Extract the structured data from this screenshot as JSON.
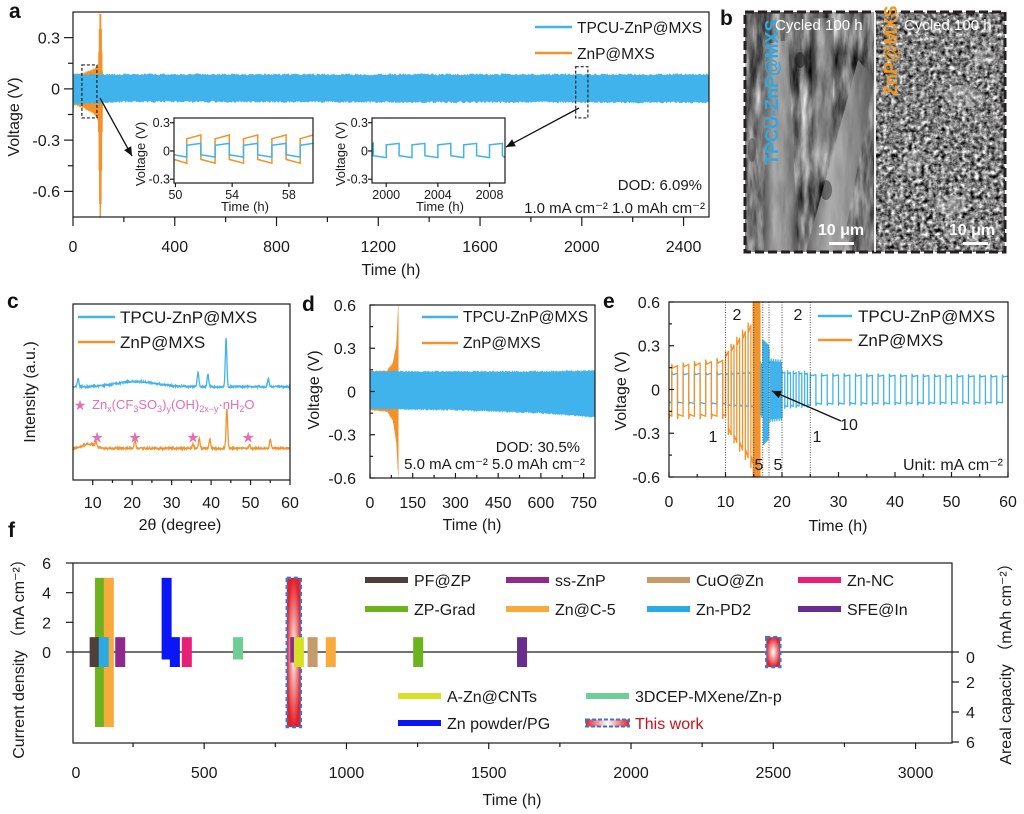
{
  "panel_labels": {
    "a": "a",
    "b": "b",
    "c": "c",
    "d": "d",
    "e": "e",
    "f": "f"
  },
  "series_colors": {
    "TPCU-ZnP@MXS": "#41b3ec",
    "ZnP@MXS": "#f2922a"
  },
  "panel_b": {
    "images": [
      {
        "sample": "TPCU-ZnP@MXS",
        "caption": "Cycled 100 h",
        "scale_bar": "10 μm",
        "label_color": "#2fa8e1"
      },
      {
        "sample": "ZnP@MXS",
        "caption": "Cycled 100 h",
        "scale_bar": "10 μm",
        "label_color": "#f39a1e"
      }
    ]
  },
  "chart_data": [
    {
      "panel": "a",
      "type": "line",
      "xlabel": "Time (h)",
      "ylabel": "Voltage (V)",
      "xlim": [
        0,
        2500
      ],
      "ylim": [
        -0.75,
        0.45
      ],
      "xticks": [
        0,
        400,
        800,
        1200,
        1600,
        2000,
        2400
      ],
      "yticks": [
        0.3,
        0,
        -0.3,
        -0.6
      ],
      "grid": false,
      "legend": {
        "position": "top-right",
        "entries": [
          "TPCU-ZnP@MXS",
          "ZnP@MXS"
        ]
      },
      "series": [
        {
          "name": "ZnP@MXS",
          "t_range": [
            0,
            100
          ],
          "envelope": [
            [
              0,
              0.085,
              -0.09
            ],
            [
              40,
              0.09,
              -0.11
            ],
            [
              85,
              0.12,
              -0.15
            ],
            [
              100,
              0.14,
              -0.19
            ]
          ],
          "failure": {
            "t_range": [
              100,
              115
            ],
            "max": 0.45,
            "min": -0.75
          }
        },
        {
          "name": "TPCU-ZnP@MXS",
          "t_range": [
            0,
            2500
          ],
          "envelope": [
            [
              0,
              0.09,
              -0.17
            ],
            [
              4,
              0.085,
              -0.09
            ],
            [
              200,
              0.085,
              -0.075
            ],
            [
              2500,
              0.085,
              -0.08
            ]
          ]
        }
      ],
      "annotations": {
        "dod": "DOD: 6.09%",
        "conditions": "1.0 mA cm⁻² 1.0 mAh cm⁻²"
      },
      "zoom_regions": [
        {
          "t": [
            35,
            94
          ],
          "v": [
            -0.17,
            0.14
          ]
        },
        {
          "t": [
            1976,
            2024
          ],
          "v": [
            -0.17,
            0.13
          ]
        }
      ],
      "insets": [
        {
          "xlabel": "Time (h)",
          "ylabel": "Voltage (V)",
          "xlim": [
            49.9,
            59.7
          ],
          "ylim": [
            -0.34,
            0.35
          ],
          "xticks": [
            50,
            54,
            58
          ],
          "yticks": [
            0.3,
            0,
            -0.3
          ],
          "period_h": 2,
          "first_rise_h": 50.8,
          "series": [
            {
              "name": "ZnP@MXS",
              "high": [
                0.13,
                0.17
              ],
              "low": [
                -0.09,
                -0.13
              ]
            },
            {
              "name": "TPCU-ZnP@MXS",
              "high": [
                0.06,
                0.08
              ],
              "low": [
                -0.04,
                -0.065
              ]
            }
          ]
        },
        {
          "xlabel": "Time (h)",
          "ylabel": "Voltage (V)",
          "xlim": [
            1998.9,
            2009.2
          ],
          "ylim": [
            -0.34,
            0.35
          ],
          "xticks": [
            2000,
            2004,
            2008
          ],
          "yticks": [
            0.3,
            0,
            -0.3
          ],
          "period_h": 2,
          "first_rise_h": 2000,
          "series": [
            {
              "name": "TPCU-ZnP@MXS",
              "high": [
                0.065,
                0.08
              ],
              "low": [
                -0.05,
                -0.07
              ]
            }
          ]
        }
      ]
    },
    {
      "panel": "c",
      "type": "line",
      "xlabel": "2θ (degree)",
      "ylabel": "Intensity (a.u.)",
      "xlim": [
        5,
        60
      ],
      "ylim": [
        0,
        10
      ],
      "xticks": [
        10,
        20,
        30,
        40,
        50,
        60
      ],
      "yticks": [],
      "grid": false,
      "legend": {
        "position": "top-left",
        "entries": [
          "TPCU-ZnP@MXS",
          "ZnP@MXS"
        ]
      },
      "series": [
        {
          "name": "TPCU-ZnP@MXS",
          "baseline": 5.3,
          "hump": {
            "center": 21,
            "height": 0.3,
            "width": 5
          },
          "peaks": [
            [
              6.3,
              0.45
            ],
            [
              36.7,
              0.85
            ],
            [
              39.2,
              0.7
            ],
            [
              43.8,
              2.75
            ],
            [
              54.5,
              0.45
            ]
          ]
        },
        {
          "name": "ZnP@MXS",
          "baseline": 1.8,
          "hump": {
            "center": 9,
            "height": 0.25,
            "width": 1.5
          },
          "peaks": [
            [
              10.8,
              0.25
            ],
            [
              20.7,
              0.45
            ],
            [
              35.4,
              0.25
            ],
            [
              37,
              0.55
            ],
            [
              39.7,
              0.5
            ],
            [
              44,
              2.25
            ],
            [
              49.7,
              0.2
            ],
            [
              55,
              0.5
            ]
          ]
        }
      ],
      "markers": {
        "symbol": "★",
        "color": "#e46fb3",
        "x": [
          11.1,
          20.7,
          35.4,
          49.4
        ],
        "label_parts": [
          {
            "t": "Zn"
          },
          {
            "t": "x",
            "sub": true
          },
          {
            "t": "(CF"
          },
          {
            "t": "3",
            "sub": true
          },
          {
            "t": "SO"
          },
          {
            "t": "3",
            "sub": true
          },
          {
            "t": ")"
          },
          {
            "t": "y",
            "sub": true
          },
          {
            "t": "(OH)"
          },
          {
            "t": "2x−y",
            "sub": true
          },
          {
            "t": "·nH"
          },
          {
            "t": "2",
            "sub": true
          },
          {
            "t": "O"
          }
        ]
      }
    },
    {
      "panel": "d",
      "type": "line",
      "xlabel": "Time (h)",
      "ylabel": "Voltage (V)",
      "xlim": [
        0,
        790
      ],
      "ylim": [
        -0.6,
        0.6
      ],
      "xticks": [
        0,
        150,
        300,
        450,
        600,
        750
      ],
      "yticks": [
        0.6,
        0.3,
        0,
        -0.3,
        -0.6
      ],
      "grid": false,
      "legend": {
        "position": "top-right",
        "entries": [
          "TPCU-ZnP@MXS",
          "ZnP@MXS"
        ]
      },
      "series": [
        {
          "name": "ZnP@MXS",
          "t_range": [
            0,
            100
          ],
          "envelope": [
            [
              0,
              0.2,
              -0.14
            ],
            [
              3,
              0.14,
              -0.13
            ],
            [
              60,
              0.145,
              -0.14
            ],
            [
              80,
              0.2,
              -0.2
            ],
            [
              92,
              0.32,
              -0.35
            ],
            [
              99,
              0.6,
              -0.6
            ],
            [
              100,
              0.6,
              -0.6
            ]
          ]
        },
        {
          "name": "TPCU-ZnP@MXS",
          "t_range": [
            0,
            790
          ],
          "envelope": [
            [
              0,
              0.14,
              -0.12
            ],
            [
              300,
              0.14,
              -0.13
            ],
            [
              600,
              0.14,
              -0.15
            ],
            [
              790,
              0.145,
              -0.18
            ]
          ]
        }
      ],
      "annotations": {
        "dod": "DOD: 30.5%",
        "conditions": "5.0 mA cm⁻² 5.0 mAh cm⁻²"
      }
    },
    {
      "panel": "e",
      "type": "line",
      "xlabel": "Time (h)",
      "ylabel": "Voltage (V)",
      "xlim": [
        0,
        60
      ],
      "ylim": [
        -0.6,
        0.6
      ],
      "xticks": [
        0,
        10,
        20,
        30,
        40,
        50,
        60
      ],
      "yticks": [
        0.6,
        0.3,
        0,
        -0.3,
        -0.6
      ],
      "grid": false,
      "legend": {
        "position": "top-right",
        "entries": [
          "TPCU-ZnP@MXS",
          "ZnP@MXS"
        ]
      },
      "rate_segments": [
        {
          "t": [
            0,
            10
          ],
          "current": "1"
        },
        {
          "t": [
            10,
            15
          ],
          "current": "2"
        },
        {
          "t": [
            15,
            16.6
          ],
          "current": "5"
        },
        {
          "t": [
            16.6,
            17.7
          ],
          "current": "10"
        },
        {
          "t": [
            17.7,
            20
          ],
          "current": "5"
        },
        {
          "t": [
            20,
            25
          ],
          "current": "2"
        },
        {
          "t": [
            25,
            60
          ],
          "current": "1"
        }
      ],
      "series": [
        {
          "name": "TPCU-ZnP@MXS",
          "segments": [
            {
              "t": [
                0,
                10
              ],
              "period_h": 2,
              "first_rise_h": 0.5,
              "high": [
                0.12,
                0.12
              ],
              "low": [
                -0.1,
                -0.11
              ]
            },
            {
              "t": [
                10,
                15
              ],
              "period_h": 1,
              "high": [
                0.12,
                0.13
              ],
              "low": [
                -0.12,
                -0.13
              ]
            },
            {
              "t": [
                15,
                16.6
              ],
              "period_h": 0.4,
              "high": [
                0.19,
                0.19
              ],
              "low": [
                -0.19,
                -0.19
              ]
            },
            {
              "t": [
                16.6,
                17.7
              ],
              "period_h": 0.2,
              "high": [
                0.34,
                0.3
              ],
              "low": [
                -0.38,
                -0.34
              ]
            },
            {
              "t": [
                17.7,
                20
              ],
              "period_h": 0.4,
              "high": [
                0.21,
                0.2
              ],
              "low": [
                -0.22,
                -0.21
              ]
            },
            {
              "t": [
                20,
                25
              ],
              "period_h": 1,
              "high": [
                0.13,
                0.12
              ],
              "low": [
                -0.13,
                -0.12
              ]
            },
            {
              "t": [
                25,
                60
              ],
              "period_h": 2,
              "high": [
                0.11,
                0.1
              ],
              "low": [
                -0.11,
                -0.1
              ]
            }
          ]
        },
        {
          "name": "ZnP@MXS",
          "segments": [
            {
              "t": [
                0,
                10
              ],
              "period_h": 2,
              "first_rise_h": 0.5,
              "high": [
                0.17,
                0.22
              ],
              "low": [
                -0.2,
                -0.2
              ]
            },
            {
              "t": [
                10,
                14.9
              ],
              "period_h": 1,
              "high": [
                0.26,
                0.5
              ],
              "low": [
                -0.28,
                -0.56
              ]
            },
            {
              "t": [
                14.9,
                16.1
              ],
              "period_h": 0.04,
              "high": [
                0.6,
                0.6
              ],
              "low": [
                -0.6,
                -0.6
              ]
            }
          ]
        }
      ],
      "annotations": {
        "unit": "Unit: mA cm⁻²"
      }
    },
    {
      "panel": "f",
      "type": "bar",
      "xlabel": "Time (h)",
      "ylabel_left": "Current density （mA cm⁻²）",
      "ylabel_right": "Areal capacity （mAh cm⁻²）",
      "xlim": [
        39,
        3128
      ],
      "ylim_left": [
        0,
        6
      ],
      "ylim_right": [
        0,
        6
      ],
      "xticks": [
        0,
        500,
        1000,
        1500,
        2000,
        2500,
        3000
      ],
      "yticks_left": [
        0,
        2,
        4,
        6
      ],
      "yticks_right": [
        0,
        2,
        4,
        6
      ],
      "grid": false,
      "legend": {
        "position": "inside-top",
        "entries": [
          {
            "name": "PF@ZP",
            "color": "#4e3f3a"
          },
          {
            "name": "ss-ZnP",
            "color": "#8e2a8c"
          },
          {
            "name": "CuO@Zn",
            "color": "#c59a6d"
          },
          {
            "name": "Zn-NC",
            "color": "#e91e79"
          },
          {
            "name": "ZP-Grad",
            "color": "#6cb31d"
          },
          {
            "name": "Zn@C-5",
            "color": "#f8aa3d"
          },
          {
            "name": "Zn-PD2",
            "color": "#2ba9e1"
          },
          {
            "name": "SFE@In",
            "color": "#672e8f"
          },
          {
            "name": "A-Zn@CNTs",
            "color": "#d6e026"
          },
          {
            "name": "3DCEP-MXene/Zn-p",
            "color": "#6fcd96"
          },
          {
            "name": "Zn powder/PG",
            "color": "#0a16f5"
          },
          {
            "name": "This work",
            "color": "#e3212a",
            "highlight": true,
            "border_color": "#3f74c9",
            "text_color": "#d0101c"
          }
        ]
      },
      "bars": [
        {
          "name": "ZP-Grad",
          "time_h": 134,
          "current": 5,
          "capacity": 5
        },
        {
          "name": "Zn@C-5",
          "time_h": 165,
          "current": 5,
          "capacity": 5
        },
        {
          "name": "PF@ZP",
          "time_h": 115,
          "current": 1,
          "capacity": 1
        },
        {
          "name": "Zn-PD2",
          "time_h": 147,
          "current": 1,
          "capacity": 1
        },
        {
          "name": "ss-ZnP",
          "time_h": 205,
          "current": 1,
          "capacity": 1
        },
        {
          "name": "Zn powder/PG",
          "time_h": 368,
          "current": 5,
          "capacity": 0.5
        },
        {
          "name": "Zn powder/PG",
          "time_h": 397,
          "current": 1,
          "capacity": 1
        },
        {
          "name": "Zn-NC",
          "time_h": 439,
          "current": 1,
          "capacity": 1
        },
        {
          "name": "3DCEP-MXene/Zn-p",
          "time_h": 619,
          "current": 1,
          "capacity": 0.5
        },
        {
          "name": "This work",
          "time_h": 815,
          "current": 5,
          "capacity": 5
        },
        {
          "name": "ss-ZnP",
          "time_h": 820,
          "current": 1,
          "capacity": 0.7
        },
        {
          "name": "A-Zn@CNTs",
          "time_h": 833,
          "current": 1,
          "capacity": 1
        },
        {
          "name": "CuO@Zn",
          "time_h": 881,
          "current": 1,
          "capacity": 1
        },
        {
          "name": "Zn@C-5",
          "time_h": 945,
          "current": 1,
          "capacity": 1
        },
        {
          "name": "ZP-Grad",
          "time_h": 1252,
          "current": 1,
          "capacity": 1
        },
        {
          "name": "SFE@In",
          "time_h": 1617,
          "current": 1,
          "capacity": 1
        },
        {
          "name": "This work",
          "time_h": 2500,
          "current": 1,
          "capacity": 1
        }
      ]
    }
  ]
}
